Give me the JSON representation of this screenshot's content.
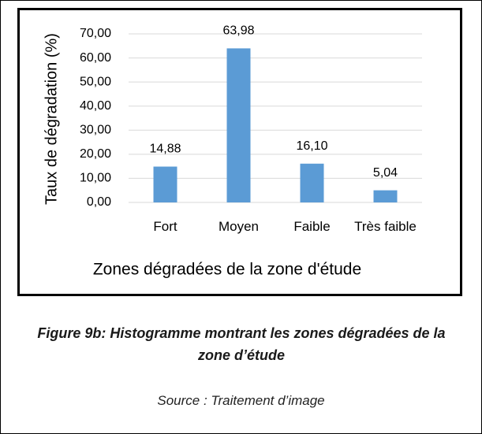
{
  "chart_data": {
    "type": "bar",
    "categories": [
      "Fort",
      "Moyen",
      "Faible",
      "Très faible"
    ],
    "values": [
      14.88,
      63.98,
      16.1,
      5.04
    ],
    "value_labels": [
      "14,88",
      "63,98",
      "16,10",
      "5,04"
    ],
    "color": "#5b9bd5",
    "ylim": [
      0,
      70
    ],
    "yticks": [
      {
        "value": 0,
        "label": "0,00"
      },
      {
        "value": 10,
        "label": "10,00"
      },
      {
        "value": 20,
        "label": "20,00"
      },
      {
        "value": 30,
        "label": "30,00"
      },
      {
        "value": 40,
        "label": "40,00"
      },
      {
        "value": 50,
        "label": "50,00"
      },
      {
        "value": 60,
        "label": "60,00"
      },
      {
        "value": 70,
        "label": "70,00"
      }
    ],
    "grid": true,
    "ylabel": "Taux de dégradation (%)",
    "xlabel": "Zones dégradées de la zone d'étude"
  },
  "caption": {
    "figure": "Figure 9b: Histogramme montrant les zones dégradées de la zone d’étude",
    "source": "Source : Traitement d’image"
  }
}
